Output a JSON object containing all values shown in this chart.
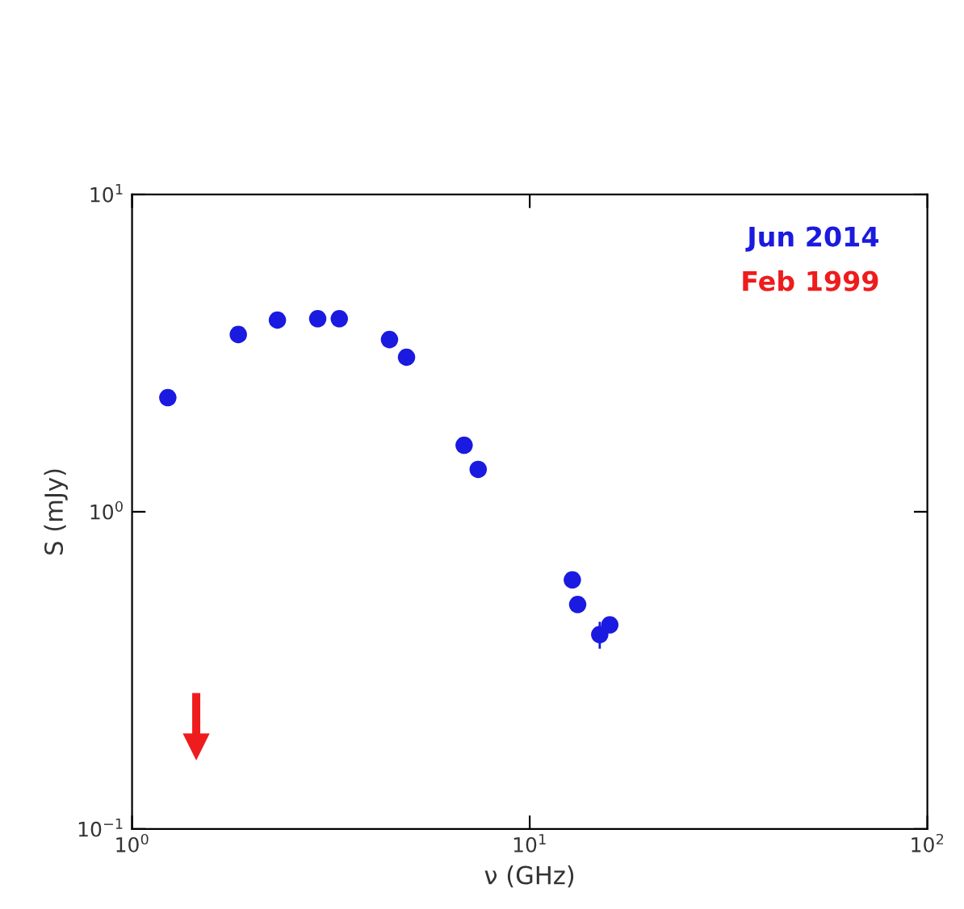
{
  "chart_data": {
    "type": "scatter",
    "xlabel": "ν (GHz)",
    "ylabel": "S (mJy)",
    "log": "xy",
    "xlim": [
      1,
      100
    ],
    "ylim": [
      0.1,
      10
    ],
    "xticks": [
      {
        "value": 1,
        "label": "10$^{0}$"
      },
      {
        "value": 10,
        "label": "10$^{1}$"
      },
      {
        "value": 100,
        "label": "10$^{2}$"
      }
    ],
    "yticks": [
      {
        "value": 0.1,
        "label": "10$^{−1}$"
      },
      {
        "value": 1,
        "label": "10$^{0}$"
      },
      {
        "value": 10,
        "label": "10$^{1}$"
      }
    ],
    "grid": false,
    "legend": "top right",
    "series": [
      {
        "name": "Jun 2014",
        "color": "#1a1ae0",
        "marker": "circle",
        "x": [
          1.23,
          1.85,
          2.32,
          2.93,
          3.32,
          4.44,
          4.9,
          6.84,
          7.42,
          12.8,
          13.2,
          15.0,
          15.9
        ],
        "values": [
          2.29,
          3.62,
          4.02,
          4.06,
          4.06,
          3.49,
          3.07,
          1.62,
          1.36,
          0.61,
          0.51,
          0.41,
          0.44
        ],
        "errors": [
          null,
          null,
          null,
          null,
          null,
          null,
          null,
          null,
          null,
          null,
          null,
          0.04,
          null
        ]
      },
      {
        "name": "Feb 1999",
        "color": "#ee1c1c",
        "marker": "triangle",
        "x": [
          1.45
        ],
        "values": [
          0.21
        ]
      }
    ]
  }
}
